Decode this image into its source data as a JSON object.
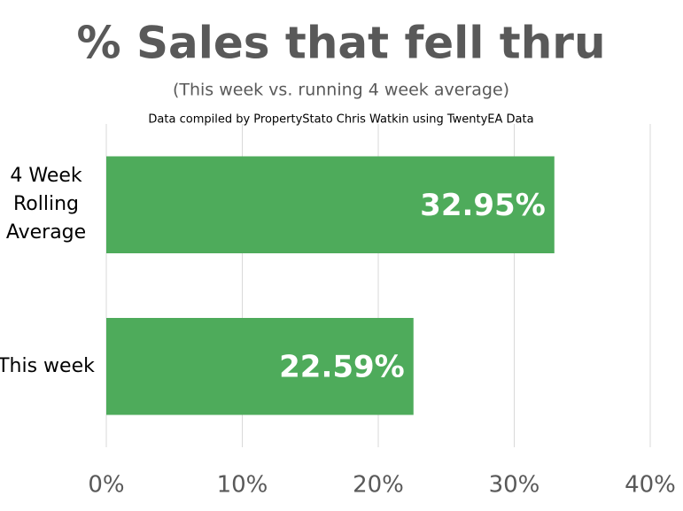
{
  "chart_data": {
    "type": "hbar",
    "title": "% Sales that fell thru",
    "subtitle": "(This week vs. running 4 week average)",
    "note": "Data compiled by PropertyStato Chris Watkin using TwentyEA Data",
    "categories": [
      "4 Week Rolling Average",
      "This week"
    ],
    "values": [
      32.95,
      22.59
    ],
    "value_labels": [
      "32.95%",
      "22.59%"
    ],
    "color": "#4eab5b",
    "xlim": [
      0,
      40
    ],
    "xticks": [
      {
        "value": 0,
        "label": "0%"
      },
      {
        "value": 10,
        "label": "10%"
      },
      {
        "value": 20,
        "label": "20%"
      },
      {
        "value": 30,
        "label": "30%"
      },
      {
        "value": 40,
        "label": "40%"
      }
    ],
    "grid": true
  }
}
